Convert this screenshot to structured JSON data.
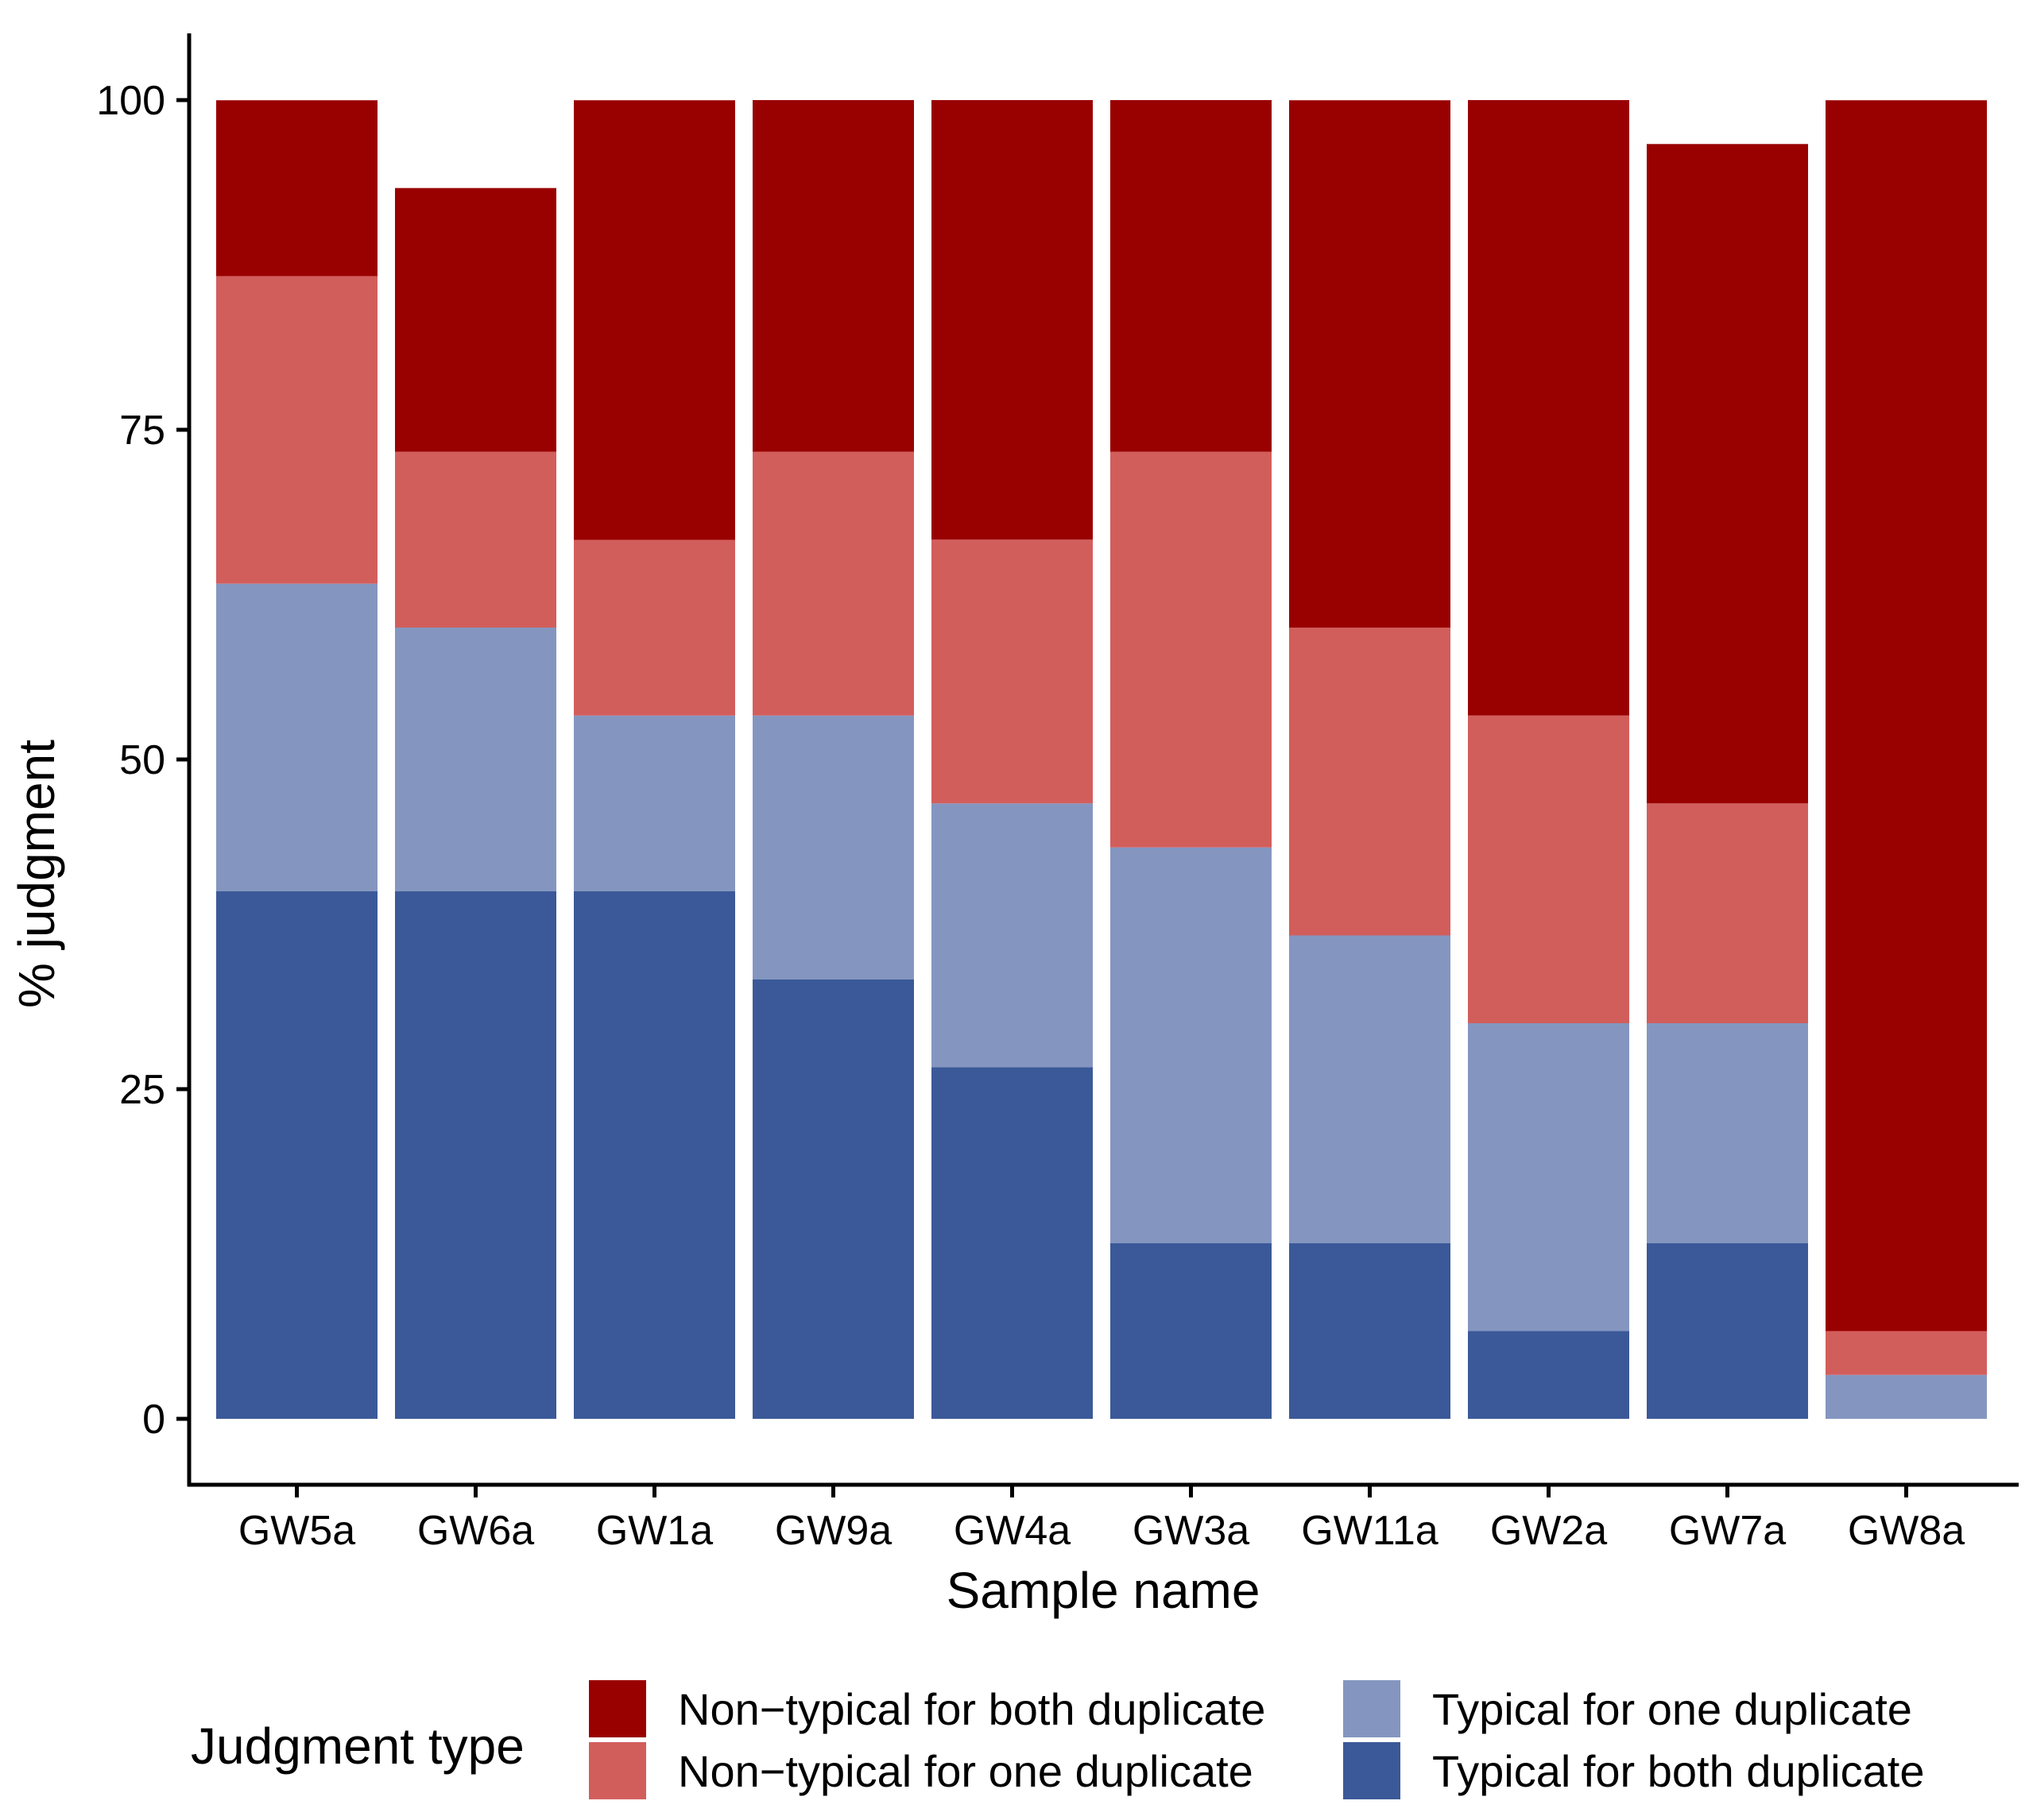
{
  "chart_data": {
    "type": "bar",
    "stacked": true,
    "xlabel": "Sample name",
    "ylabel": "% judgment",
    "ylim": [
      -8,
      105
    ],
    "yticks": [
      0,
      25,
      50,
      75,
      100
    ],
    "categories": [
      "GW5a",
      "GW6a",
      "GW1a",
      "GW9a",
      "GW4a",
      "GW3a",
      "GW11a",
      "GW2a",
      "GW7a",
      "GW8a"
    ],
    "series": [
      {
        "name": "Typical for both duplicate",
        "color": "#3B5998",
        "values": [
          40,
          40,
          40,
          33.33,
          26.67,
          13.33,
          13.33,
          6.67,
          13.33,
          0
        ]
      },
      {
        "name": "Typical for one duplicate",
        "color": "#8496C0",
        "values": [
          23.33,
          20,
          13.33,
          20,
          20,
          30,
          23.33,
          23.33,
          16.67,
          3.33
        ]
      },
      {
        "name": "Non−typical for one duplicate",
        "color": "#D25E5C",
        "values": [
          23.33,
          13.33,
          13.33,
          20,
          20,
          30,
          23.33,
          23.33,
          16.67,
          3.33
        ]
      },
      {
        "name": "Non−typical for both duplicate",
        "color": "#990000",
        "values": [
          13.33,
          20,
          33.33,
          26.67,
          33.33,
          26.67,
          40,
          46.67,
          50,
          93.33
        ]
      }
    ],
    "legend": {
      "title": "Judgment type",
      "position": "bottom",
      "order": [
        "Non−typical for both duplicate",
        "Non−typical for one duplicate",
        "Typical for one duplicate",
        "Typical for both duplicate"
      ]
    },
    "grid": false
  }
}
